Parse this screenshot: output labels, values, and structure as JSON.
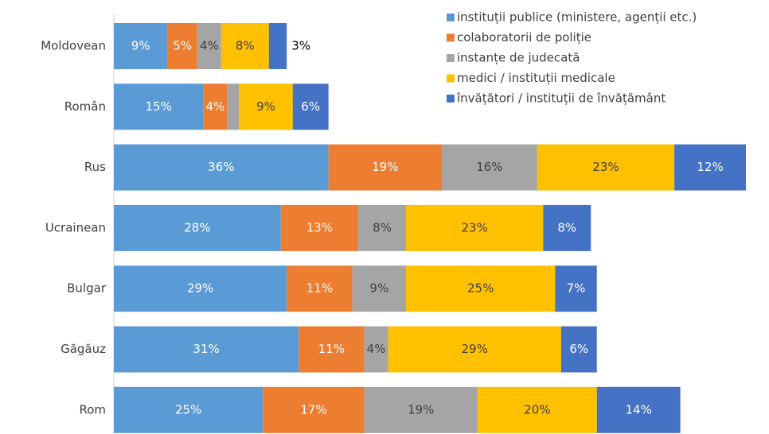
{
  "chart_data": {
    "type": "stacked_bar_horizontal",
    "categories": [
      "Moldovean",
      "Român",
      "Rus",
      "Ucrainean",
      "Bulgar",
      "Găgăuz",
      "Rom"
    ],
    "series": [
      {
        "name": "instituții publice (ministere, agenții etc.)",
        "color": "#5B9BD5",
        "values": [
          9,
          15,
          36,
          28,
          29,
          31,
          25
        ],
        "value_labels": [
          "9%",
          "15%",
          "36%",
          "28%",
          "29%",
          "31%",
          "25%"
        ]
      },
      {
        "name": "colaboratorii de poliție",
        "color": "#ED7D31",
        "values": [
          5,
          4,
          19,
          13,
          11,
          11,
          17
        ],
        "value_labels": [
          "5%",
          "4%",
          "19%",
          "13%",
          "11%",
          "11%",
          "17%"
        ]
      },
      {
        "name": "instanțe de judecată",
        "color": "#A5A5A5",
        "values": [
          4,
          2,
          16,
          8,
          9,
          4,
          19
        ],
        "value_labels": [
          "4%",
          null,
          "16%",
          "8%",
          "9%",
          "4%",
          "19%"
        ]
      },
      {
        "name": "medici / instituții medicale",
        "color": "#FFC000",
        "values": [
          8,
          9,
          23,
          23,
          25,
          29,
          20
        ],
        "value_labels": [
          "8%",
          "9%",
          "23%",
          "23%",
          "25%",
          "29%",
          "20%"
        ]
      },
      {
        "name": "învățători / instituții de învățământ",
        "color": "#4472C4",
        "values": [
          3,
          6,
          12,
          8,
          7,
          6,
          14
        ],
        "value_labels": [
          "3%",
          "6%",
          "12%",
          "8%",
          "7%",
          "6%",
          "14%"
        ]
      }
    ],
    "legend": "top-right"
  }
}
